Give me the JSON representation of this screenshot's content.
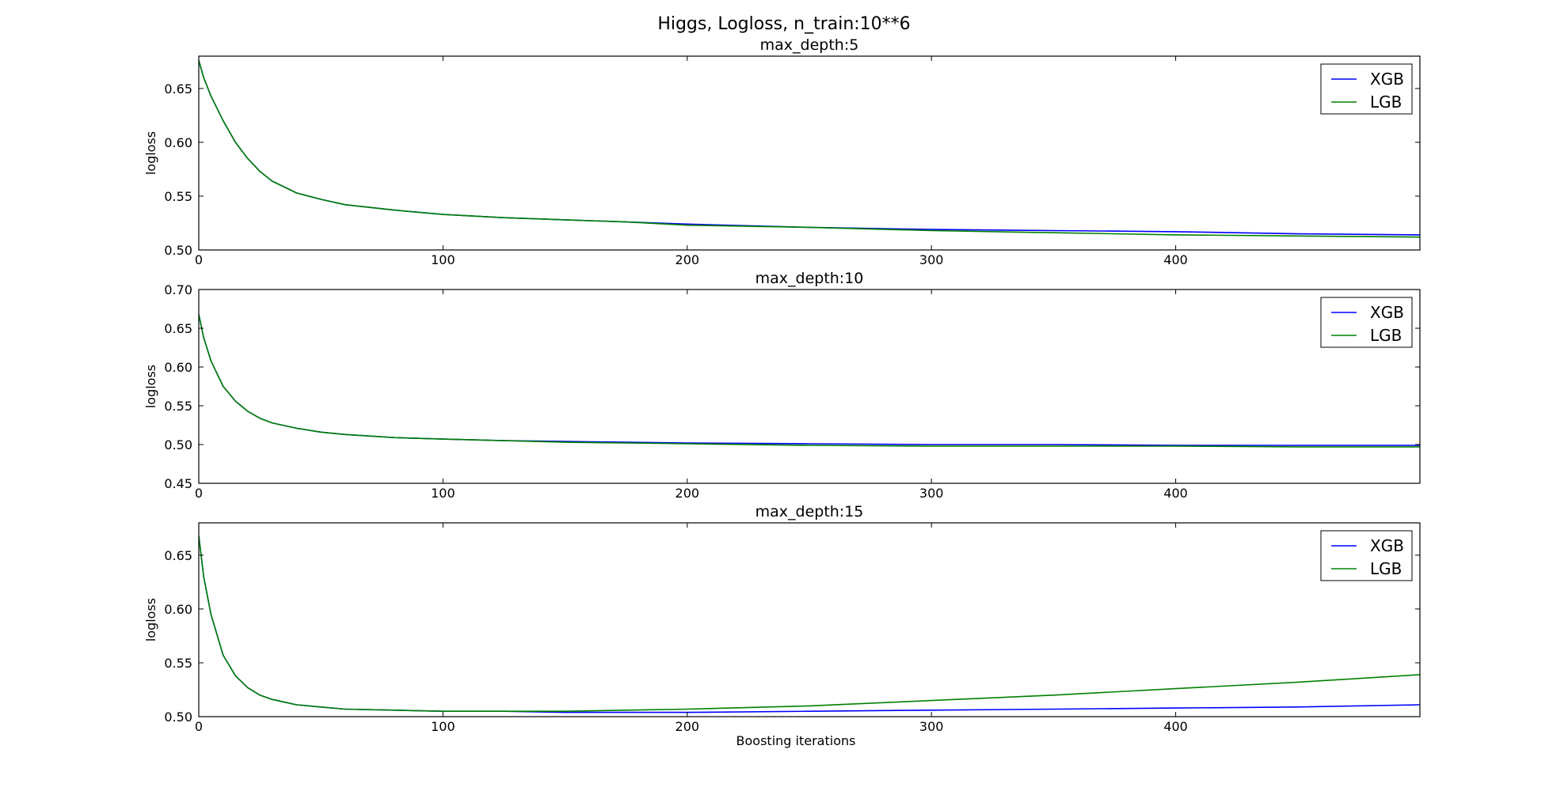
{
  "figure": {
    "suptitle": "Higgs, Logloss, n_train:10**6",
    "xlabel": "Boosting iterations"
  },
  "chart_data": [
    {
      "type": "line",
      "title": "max_depth:5",
      "xlabel": "",
      "ylabel": "logloss",
      "xlim": [
        0,
        500
      ],
      "ylim": [
        0.5,
        0.68
      ],
      "xticks": [
        0,
        100,
        200,
        300,
        400
      ],
      "yticks": [
        0.5,
        0.55,
        0.6,
        0.65
      ],
      "ytick_labels": [
        "0.50",
        "0.55",
        "0.60",
        "0.65"
      ],
      "legend": "top-right",
      "grid": false,
      "x": [
        0,
        2,
        5,
        10,
        15,
        20,
        25,
        30,
        40,
        50,
        60,
        80,
        100,
        125,
        150,
        175,
        200,
        250,
        300,
        350,
        400,
        450,
        500
      ],
      "series": [
        {
          "name": "XGB",
          "color": "#0000ff",
          "values": [
            0.676,
            0.66,
            0.643,
            0.62,
            0.6,
            0.585,
            0.573,
            0.564,
            0.553,
            0.547,
            0.542,
            0.537,
            0.533,
            0.53,
            0.528,
            0.526,
            0.524,
            0.521,
            0.519,
            0.518,
            0.517,
            0.515,
            0.514
          ]
        },
        {
          "name": "LGB",
          "color": "#008000",
          "values": [
            0.676,
            0.66,
            0.643,
            0.62,
            0.6,
            0.585,
            0.573,
            0.564,
            0.553,
            0.547,
            0.542,
            0.537,
            0.533,
            0.53,
            0.528,
            0.526,
            0.523,
            0.521,
            0.518,
            0.516,
            0.514,
            0.513,
            0.512
          ]
        }
      ]
    },
    {
      "type": "line",
      "title": "max_depth:10",
      "xlabel": "",
      "ylabel": "logloss",
      "xlim": [
        0,
        500
      ],
      "ylim": [
        0.45,
        0.7
      ],
      "xticks": [
        0,
        100,
        200,
        300,
        400
      ],
      "yticks": [
        0.45,
        0.5,
        0.55,
        0.6,
        0.65,
        0.7
      ],
      "ytick_labels": [
        "0.45",
        "0.50",
        "0.55",
        "0.60",
        "0.65",
        "0.70"
      ],
      "legend": "top-right",
      "grid": false,
      "x": [
        0,
        2,
        5,
        10,
        15,
        20,
        25,
        30,
        40,
        50,
        60,
        80,
        100,
        125,
        150,
        175,
        200,
        250,
        300,
        350,
        400,
        450,
        500
      ],
      "series": [
        {
          "name": "XGB",
          "color": "#0000ff",
          "values": [
            0.668,
            0.638,
            0.608,
            0.575,
            0.556,
            0.543,
            0.534,
            0.528,
            0.521,
            0.516,
            0.513,
            0.509,
            0.507,
            0.505,
            0.504,
            0.503,
            0.502,
            0.501,
            0.5,
            0.5,
            0.499,
            0.499,
            0.499
          ]
        },
        {
          "name": "LGB",
          "color": "#008000",
          "values": [
            0.668,
            0.638,
            0.608,
            0.575,
            0.556,
            0.543,
            0.534,
            0.528,
            0.521,
            0.516,
            0.513,
            0.509,
            0.507,
            0.505,
            0.503,
            0.502,
            0.501,
            0.499,
            0.498,
            0.498,
            0.498,
            0.497,
            0.497
          ]
        }
      ]
    },
    {
      "type": "line",
      "title": "max_depth:15",
      "xlabel": "Boosting iterations",
      "ylabel": "logloss",
      "xlim": [
        0,
        500
      ],
      "ylim": [
        0.5,
        0.68
      ],
      "xticks": [
        0,
        100,
        200,
        300,
        400
      ],
      "yticks": [
        0.5,
        0.55,
        0.6,
        0.65
      ],
      "ytick_labels": [
        "0.50",
        "0.55",
        "0.60",
        "0.65"
      ],
      "legend": "top-right",
      "grid": false,
      "x": [
        0,
        2,
        5,
        10,
        15,
        20,
        25,
        30,
        40,
        50,
        60,
        80,
        100,
        125,
        150,
        175,
        200,
        250,
        300,
        350,
        400,
        450,
        500
      ],
      "series": [
        {
          "name": "XGB",
          "color": "#0000ff",
          "values": [
            0.668,
            0.63,
            0.595,
            0.557,
            0.538,
            0.527,
            0.52,
            0.516,
            0.511,
            0.509,
            0.507,
            0.506,
            0.505,
            0.505,
            0.504,
            0.504,
            0.504,
            0.505,
            0.506,
            0.507,
            0.508,
            0.509,
            0.511
          ]
        },
        {
          "name": "LGB",
          "color": "#008000",
          "values": [
            0.668,
            0.63,
            0.595,
            0.557,
            0.538,
            0.527,
            0.52,
            0.516,
            0.511,
            0.509,
            0.507,
            0.506,
            0.505,
            0.505,
            0.505,
            0.506,
            0.507,
            0.51,
            0.515,
            0.52,
            0.526,
            0.532,
            0.539
          ]
        }
      ]
    }
  ]
}
